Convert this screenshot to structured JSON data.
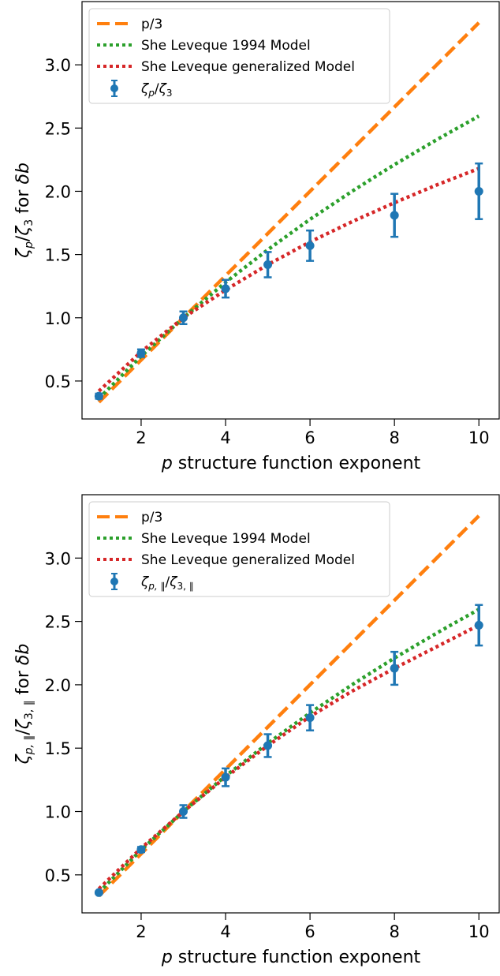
{
  "colors": {
    "p_over_3": "#ff7f0e",
    "she_leveque_1994": "#2ca02c",
    "she_leveque_generalized": "#d62728",
    "measured": "#1f77b4"
  },
  "chart_data": [
    {
      "type": "line",
      "xlabel": "p structure function exponent",
      "ylabel": "ζp/ζ3 for δb",
      "xlim": [
        0.6,
        10.5
      ],
      "ylim": [
        0.2,
        3.5
      ],
      "xticks": [
        2,
        4,
        6,
        8,
        10
      ],
      "yticks": [
        0.5,
        1.0,
        1.5,
        2.0,
        2.5,
        3.0
      ],
      "xtick_labels": [
        "2",
        "4",
        "6",
        "8",
        "10"
      ],
      "ytick_labels": [
        "0.5",
        "1.0",
        "1.5",
        "2.0",
        "2.5",
        "3.0"
      ],
      "grid": false,
      "legend_position": "top-left",
      "series": [
        {
          "name": "p/3",
          "style": "dashed",
          "x": [
            1,
            10
          ],
          "y": [
            0.333,
            3.333
          ]
        },
        {
          "name": "She Leveque 1994 Model",
          "style": "dotted",
          "x": [
            1,
            2,
            3,
            4,
            5,
            6,
            7,
            8,
            9,
            10
          ],
          "y": [
            0.362,
            0.696,
            1.0,
            1.28,
            1.538,
            1.778,
            2.001,
            2.211,
            2.408,
            2.595
          ]
        },
        {
          "name": "She Leveque generalized Model",
          "style": "dotted",
          "x": [
            1,
            2,
            3,
            4,
            5,
            6,
            7,
            8,
            9,
            10
          ],
          "y": [
            0.42,
            0.73,
            1.0,
            1.22,
            1.42,
            1.6,
            1.76,
            1.91,
            2.05,
            2.18
          ]
        }
      ],
      "points": {
        "name": "ζp/ζ3",
        "x": [
          1,
          2,
          3,
          4,
          5,
          6,
          8,
          10
        ],
        "y": [
          0.38,
          0.72,
          1.0,
          1.23,
          1.42,
          1.57,
          1.81,
          2.0
        ],
        "err": [
          0.02,
          0.03,
          0.05,
          0.07,
          0.1,
          0.12,
          0.17,
          0.22
        ]
      }
    },
    {
      "type": "line",
      "xlabel": "p structure function exponent",
      "ylabel": "ζp,∥/ζ3,∥ for δb",
      "xlim": [
        0.6,
        10.5
      ],
      "ylim": [
        0.2,
        3.5
      ],
      "xticks": [
        2,
        4,
        6,
        8,
        10
      ],
      "yticks": [
        0.5,
        1.0,
        1.5,
        2.0,
        2.5,
        3.0
      ],
      "xtick_labels": [
        "2",
        "4",
        "6",
        "8",
        "10"
      ],
      "ytick_labels": [
        "0.5",
        "1.0",
        "1.5",
        "2.0",
        "2.5",
        "3.0"
      ],
      "grid": false,
      "legend_position": "top-left",
      "series": [
        {
          "name": "p/3",
          "style": "dashed",
          "x": [
            1,
            10
          ],
          "y": [
            0.333,
            3.333
          ]
        },
        {
          "name": "She Leveque 1994 Model",
          "style": "dotted",
          "x": [
            1,
            2,
            3,
            4,
            5,
            6,
            7,
            8,
            9,
            10
          ],
          "y": [
            0.362,
            0.696,
            1.0,
            1.28,
            1.538,
            1.778,
            2.001,
            2.211,
            2.408,
            2.595
          ]
        },
        {
          "name": "She Leveque generalized Model",
          "style": "dotted",
          "x": [
            1,
            2,
            3,
            4,
            5,
            6,
            7,
            8,
            9,
            10
          ],
          "y": [
            0.39,
            0.71,
            1.0,
            1.27,
            1.52,
            1.75,
            1.95,
            2.13,
            2.3,
            2.47
          ]
        }
      ],
      "points": {
        "name": "ζp,∥/ζ3,∥",
        "x": [
          1,
          2,
          3,
          4,
          5,
          6,
          8,
          10
        ],
        "y": [
          0.36,
          0.7,
          1.0,
          1.27,
          1.52,
          1.74,
          2.13,
          2.47
        ],
        "err": [
          0.01,
          0.02,
          0.05,
          0.07,
          0.09,
          0.1,
          0.13,
          0.16
        ]
      }
    }
  ]
}
